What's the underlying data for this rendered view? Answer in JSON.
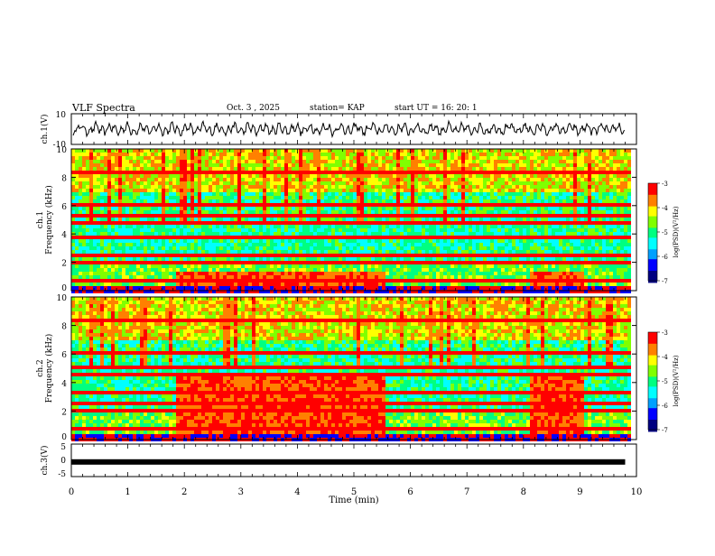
{
  "header": {
    "title": "VLF Spectra",
    "date": "Oct. 3 , 2025",
    "station": "station= KAP",
    "start_time": "start UT =  16: 20: 1"
  },
  "colors": {
    "spectrum_scale": [
      "#000080",
      "#0000ff",
      "#00a0ff",
      "#00ffff",
      "#00ff80",
      "#80ff00",
      "#ffff00",
      "#ff8000",
      "#ff0000"
    ],
    "line": "#000000"
  },
  "chart_data": [
    {
      "type": "line",
      "name": "ch1-waveform",
      "ylabel": "ch.1(V)",
      "ylim": [
        -10,
        10
      ],
      "yticks": [
        "10",
        "-10"
      ],
      "x_range": [
        0,
        9.8
      ],
      "description_values": {
        "typical_amplitude_v": 4
      }
    },
    {
      "type": "heatmap",
      "name": "ch1-spectrogram",
      "ylabel_line1": "ch.1",
      "ylabel_line2": "Frequency (kHz)",
      "ylim": [
        0,
        10
      ],
      "yticks": [
        "0",
        "2",
        "4",
        "6",
        "8",
        "10"
      ],
      "colorbar": {
        "ticks": [
          "-3",
          "-4",
          "-5",
          "-6",
          "-7"
        ],
        "label": "log(PSD)(V²/Hz)",
        "range": [
          -7,
          -3
        ]
      },
      "bursts_min": [
        [
          1.85,
          5.55
        ],
        [
          8.1,
          9.05
        ]
      ],
      "burst_band_khz": [
        0.5,
        1.5
      ]
    },
    {
      "type": "heatmap",
      "name": "ch2-spectrogram",
      "ylabel_line1": "ch.2",
      "ylabel_line2": "Frequency (kHz)",
      "ylim": [
        0,
        10
      ],
      "yticks": [
        "0",
        "2",
        "4",
        "6",
        "8",
        "10"
      ],
      "colorbar": {
        "ticks": [
          "-3",
          "-4",
          "-5",
          "-6",
          "-7"
        ],
        "label": "log(PSD)(V²/Hz)",
        "range": [
          -7,
          -3
        ]
      },
      "bursts_min": [
        [
          1.85,
          5.55
        ],
        [
          8.1,
          9.05
        ]
      ],
      "burst_band_khz": [
        0.5,
        4.9
      ]
    },
    {
      "type": "line",
      "name": "ch3-trace",
      "ylabel": "ch.3(V)",
      "ylim": [
        -5,
        5
      ],
      "yticks": [
        "5",
        "0",
        "-5"
      ],
      "value": -0.5
    }
  ],
  "x_axis": {
    "label": "Time (min)",
    "ticks": [
      "0",
      "1",
      "2",
      "3",
      "4",
      "5",
      "6",
      "7",
      "8",
      "9",
      "10"
    ],
    "range": [
      0,
      10
    ]
  }
}
